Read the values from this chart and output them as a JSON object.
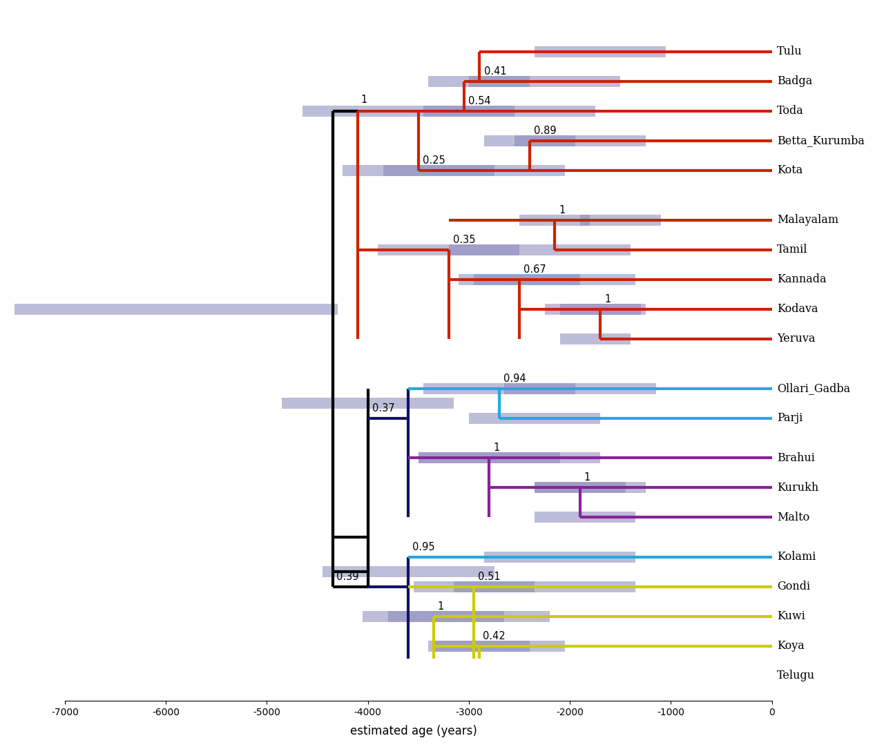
{
  "xlabel": "estimated age (years)",
  "xlim": [
    -7500,
    400
  ],
  "ylim": [
    -4.5,
    21.5
  ],
  "xticks": [
    -7000,
    -6000,
    -5000,
    -4000,
    -3000,
    -2000,
    -1000,
    0
  ],
  "taxa_y": {
    "Tulu": 20,
    "Badga": 18.8,
    "Toda": 17.6,
    "Betta_Kurumba": 16.4,
    "Kota": 15.2,
    "Malayalam": 13.2,
    "Tamil": 12.0,
    "Kannada": 10.8,
    "Kodava": 9.6,
    "Yeruva": 8.4,
    "Ollari_Gadba": 6.4,
    "Parji": 5.2,
    "Brahui": 3.6,
    "Kurukh": 2.4,
    "Malto": 1.2,
    "Kolami": -0.4,
    "Gondi": -1.6,
    "Kuwi": -2.8,
    "Koya": -4.0,
    "Telugu": -5.2
  },
  "bar_color": "#8888bb",
  "bar_alpha": 0.55,
  "bar_height": 0.45,
  "red": "#cc2200",
  "cyan": "#22aadd",
  "purple": "#882299",
  "yellow": "#cccc00",
  "navy": "#111166",
  "black": "#000000",
  "lw": 2.5,
  "lw_thick": 3.0
}
